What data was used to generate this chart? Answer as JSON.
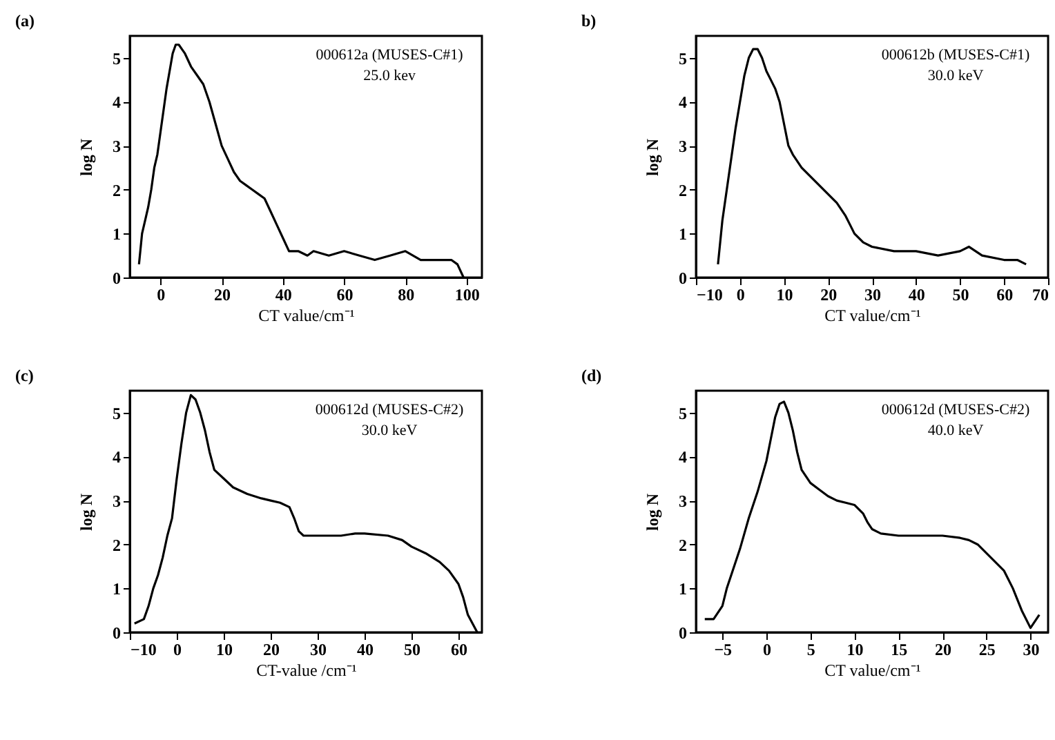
{
  "chart_data": [
    {
      "type": "line",
      "title": "(a)",
      "xlabel": "CT value/cm⁻¹",
      "ylabel": "log N",
      "annotations": [
        "000612a (MUSES-C#1)",
        "25.0 kev"
      ],
      "xlim": [
        -10,
        105
      ],
      "xticks": [
        0,
        20,
        40,
        60,
        80,
        100
      ],
      "ylim": [
        0,
        5.5
      ],
      "yticks": [
        0,
        1,
        2,
        3,
        4,
        5
      ],
      "grid": false,
      "series": [
        {
          "color": "#000000",
          "x": [
            -7,
            -6,
            -5,
            -4,
            -3,
            -2,
            -1,
            0,
            1,
            2,
            3,
            4,
            5,
            6,
            7,
            8,
            10,
            12,
            14,
            16,
            18,
            20,
            22,
            24,
            26,
            28,
            30,
            32,
            34,
            36,
            38,
            40,
            42,
            45,
            48,
            50,
            55,
            60,
            65,
            70,
            75,
            80,
            85,
            90,
            95,
            97,
            99
          ],
          "values": [
            0.3,
            1.0,
            1.3,
            1.6,
            2.0,
            2.5,
            2.8,
            3.3,
            3.8,
            4.3,
            4.7,
            5.1,
            5.3,
            5.3,
            5.2,
            5.1,
            4.8,
            4.6,
            4.4,
            4.0,
            3.5,
            3.0,
            2.7,
            2.4,
            2.2,
            2.1,
            2.0,
            1.9,
            1.8,
            1.5,
            1.2,
            0.9,
            0.6,
            0.6,
            0.5,
            0.6,
            0.5,
            0.6,
            0.5,
            0.4,
            0.5,
            0.6,
            0.4,
            0.4,
            0.4,
            0.3,
            0
          ]
        }
      ]
    },
    {
      "type": "line",
      "title": "b)",
      "xlabel": "CT value/cm⁻¹",
      "ylabel": "log N",
      "annotations": [
        "000612b (MUSES-C#1)",
        "30.0 keV"
      ],
      "xlim": [
        -10,
        70
      ],
      "xticks": [
        -10,
        0,
        10,
        20,
        30,
        40,
        50,
        60,
        70
      ],
      "ylim": [
        0,
        5.5
      ],
      "yticks": [
        0,
        1,
        2,
        3,
        4,
        5
      ],
      "grid": false,
      "series": [
        {
          "color": "#000000",
          "x": [
            -5,
            -4,
            -3,
            -2,
            -1,
            0,
            1,
            2,
            3,
            4,
            5,
            6,
            7,
            8,
            9,
            10,
            11,
            12,
            14,
            16,
            18,
            20,
            22,
            24,
            25,
            26,
            28,
            30,
            35,
            40,
            45,
            50,
            52,
            55,
            60,
            63,
            65
          ],
          "values": [
            0.3,
            1.3,
            2.0,
            2.7,
            3.4,
            4.0,
            4.6,
            5.0,
            5.2,
            5.2,
            5.0,
            4.7,
            4.5,
            4.3,
            4.0,
            3.5,
            3.0,
            2.8,
            2.5,
            2.3,
            2.1,
            1.9,
            1.7,
            1.4,
            1.2,
            1.0,
            0.8,
            0.7,
            0.6,
            0.6,
            0.5,
            0.6,
            0.7,
            0.5,
            0.4,
            0.4,
            0.3
          ]
        }
      ]
    },
    {
      "type": "line",
      "title": "(c)",
      "xlabel": "CT-value /cm⁻¹",
      "ylabel": "log N",
      "annotations": [
        "000612d (MUSES-C#2)",
        "30.0 keV"
      ],
      "xlim": [
        -10,
        65
      ],
      "xticks": [
        -10,
        0,
        10,
        20,
        30,
        40,
        50,
        60
      ],
      "ylim": [
        0,
        5.5
      ],
      "yticks": [
        0,
        1,
        2,
        3,
        4,
        5
      ],
      "grid": false,
      "series": [
        {
          "color": "#000000",
          "x": [
            -9,
            -7,
            -6,
            -5,
            -4,
            -3,
            -2,
            -1,
            0,
            1,
            2,
            3,
            4,
            5,
            6,
            7,
            8,
            10,
            12,
            15,
            18,
            20,
            22,
            24,
            25,
            26,
            27,
            30,
            35,
            38,
            40,
            45,
            48,
            50,
            53,
            56,
            58,
            60,
            61,
            62,
            63,
            64
          ],
          "values": [
            0.2,
            0.3,
            0.6,
            1.0,
            1.3,
            1.7,
            2.2,
            2.6,
            3.5,
            4.3,
            5.0,
            5.4,
            5.3,
            5.0,
            4.6,
            4.1,
            3.7,
            3.5,
            3.3,
            3.15,
            3.05,
            3.0,
            2.95,
            2.85,
            2.6,
            2.3,
            2.2,
            2.2,
            2.2,
            2.25,
            2.25,
            2.2,
            2.1,
            1.95,
            1.8,
            1.6,
            1.4,
            1.1,
            0.8,
            0.4,
            0.2,
            0
          ]
        }
      ]
    },
    {
      "type": "line",
      "title": "(d)",
      "xlabel": "CT value/cm⁻¹",
      "ylabel": "log N",
      "annotations": [
        "000612d (MUSES-C#2)",
        "40.0 keV"
      ],
      "xlim": [
        -8,
        32
      ],
      "xticks": [
        -5,
        0,
        5,
        10,
        15,
        20,
        25,
        30
      ],
      "ylim": [
        0,
        5.5
      ],
      "yticks": [
        0,
        1,
        2,
        3,
        4,
        5
      ],
      "grid": false,
      "series": [
        {
          "color": "#000000",
          "x": [
            -7,
            -6,
            -5,
            -4.5,
            -4,
            -3,
            -2,
            -1,
            0,
            0.5,
            1,
            1.5,
            2,
            2.5,
            3,
            3.5,
            4,
            5,
            6,
            7,
            8,
            9,
            10,
            11,
            11.5,
            12,
            13,
            15,
            18,
            20,
            22,
            23,
            24,
            25,
            26,
            27,
            28,
            29,
            30,
            31
          ],
          "values": [
            0.3,
            0.3,
            0.6,
            1.0,
            1.3,
            1.9,
            2.6,
            3.2,
            3.9,
            4.4,
            4.9,
            5.2,
            5.25,
            5.0,
            4.6,
            4.1,
            3.7,
            3.4,
            3.25,
            3.1,
            3.0,
            2.95,
            2.9,
            2.7,
            2.5,
            2.35,
            2.25,
            2.2,
            2.2,
            2.2,
            2.15,
            2.1,
            2.0,
            1.8,
            1.6,
            1.4,
            1.0,
            0.5,
            0.1,
            0.4
          ]
        }
      ]
    }
  ]
}
